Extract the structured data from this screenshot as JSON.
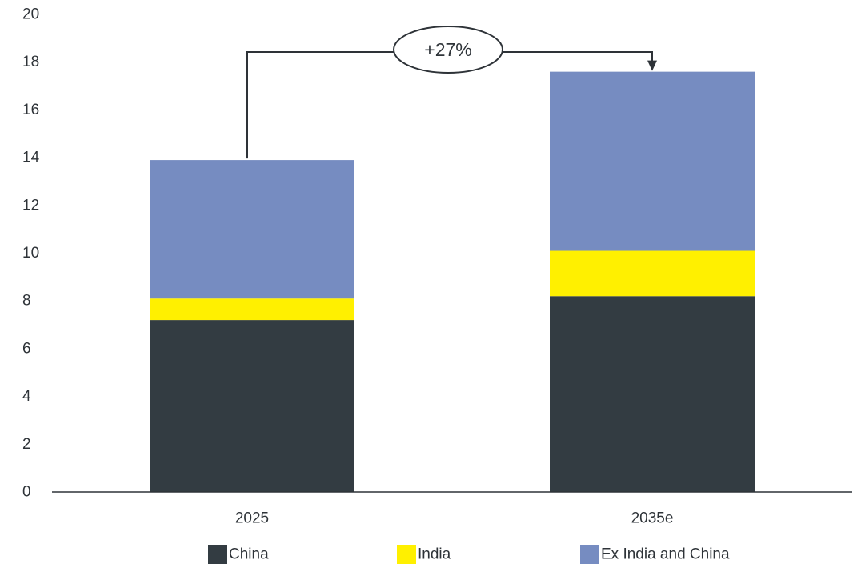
{
  "chart_data": {
    "type": "bar",
    "stacked": true,
    "categories": [
      "2025",
      "2035e"
    ],
    "series": [
      {
        "name": "China",
        "values": [
          7.2,
          8.2
        ],
        "color": "#333c42"
      },
      {
        "name": "India",
        "values": [
          0.9,
          1.9
        ],
        "color": "#fff000"
      },
      {
        "name": "Ex India and China",
        "values": [
          5.8,
          7.5
        ],
        "color": "#768cc1"
      }
    ],
    "ylim": [
      0,
      20
    ],
    "yticks": [
      0,
      2,
      4,
      6,
      8,
      10,
      12,
      14,
      16,
      18,
      20
    ],
    "grid": false,
    "legend_position": "bottom",
    "annotation": {
      "text": "+27%",
      "from": "2025",
      "to": "2035e"
    }
  }
}
